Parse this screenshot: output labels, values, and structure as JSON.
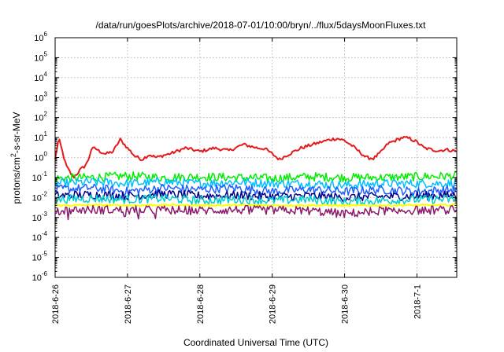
{
  "chart_data": {
    "type": "line",
    "title": "/data/run/goesPlots/archive/2018-07-01/10:00/bryn/../flux/5daysMoonFluxes.txt",
    "xlabel": "Coordinated Universal Time (UTC)",
    "ylabel": "protons/cm2-s-sr-MeV",
    "ylabel_parts": {
      "pre": "protons/cm",
      "sup": "2",
      "post": "-s-sr-MeV"
    },
    "x_unit": "days since 2018-06-26 00:00 UTC",
    "xlim": [
      0,
      5.55
    ],
    "ylim_log10": [
      -6,
      6
    ],
    "y_scale": "log",
    "grid": true,
    "legend": "none",
    "x_ticks": [
      {
        "pos": 0,
        "label": "2018-6-26"
      },
      {
        "pos": 1,
        "label": "2018-6-27"
      },
      {
        "pos": 2,
        "label": "2018-6-28"
      },
      {
        "pos": 3,
        "label": "2018-6-29"
      },
      {
        "pos": 4,
        "label": "2018-6-30"
      },
      {
        "pos": 5,
        "label": "2018-7-1"
      }
    ],
    "y_ticks": [
      {
        "exp": "6",
        "label": "10"
      },
      {
        "exp": "5",
        "label": "10"
      },
      {
        "exp": "4",
        "label": "10"
      },
      {
        "exp": "3",
        "label": "10"
      },
      {
        "exp": "2",
        "label": "10"
      },
      {
        "exp": "1",
        "label": "10"
      },
      {
        "exp": "0",
        "label": "10"
      },
      {
        "exp": "-1",
        "label": "10"
      },
      {
        "exp": "-2",
        "label": "10"
      },
      {
        "exp": "-3",
        "label": "10"
      },
      {
        "exp": "-4",
        "label": "10"
      },
      {
        "exp": "-5",
        "label": "10"
      },
      {
        "exp": "-6",
        "label": "10"
      }
    ],
    "series": [
      {
        "color": "#e41a1c",
        "width": 2,
        "x": [
          0.0,
          0.05,
          0.1,
          0.15,
          0.2,
          0.25,
          0.3,
          0.35,
          0.4,
          0.45,
          0.5,
          0.55,
          0.6,
          0.65,
          0.7,
          0.8,
          0.9,
          1.0,
          1.1,
          1.2,
          1.3,
          1.4,
          1.5,
          1.6,
          1.8,
          2.0,
          2.2,
          2.4,
          2.6,
          2.8,
          2.9,
          3.0,
          3.1,
          3.2,
          3.4,
          3.6,
          3.8,
          3.9,
          4.0,
          4.1,
          4.2,
          4.3,
          4.4,
          4.5,
          4.6,
          4.8,
          4.9,
          5.0,
          5.1,
          5.2,
          5.3,
          5.4,
          5.55
        ],
        "y": [
          0.8,
          9,
          2,
          0.4,
          0.2,
          0.1,
          0.15,
          0.25,
          0.35,
          0.6,
          2.5,
          3,
          2.2,
          1.8,
          1.5,
          2,
          8,
          3,
          1.2,
          0.8,
          1.4,
          1,
          1.3,
          1.6,
          3,
          2,
          3,
          2.2,
          4.5,
          3,
          2.8,
          1.5,
          0.8,
          1.3,
          3,
          5,
          8,
          9,
          7,
          4,
          2,
          1,
          0.9,
          1.8,
          5,
          10,
          9,
          6,
          3,
          2.5,
          2.2,
          2.5,
          2.1
        ]
      },
      {
        "color": "#00ee00",
        "width": 1.5,
        "x": [
          0.0,
          0.5,
          1.0,
          1.5,
          2.0,
          2.5,
          3.0,
          3.5,
          4.0,
          4.5,
          5.0,
          5.55
        ],
        "y": [
          0.09,
          0.1,
          0.12,
          0.1,
          0.11,
          0.1,
          0.09,
          0.11,
          0.1,
          0.1,
          0.11,
          0.12
        ]
      },
      {
        "color": "#00bfff",
        "width": 1.5,
        "x": [
          0.0,
          0.5,
          1.0,
          1.5,
          2.0,
          2.5,
          3.0,
          3.5,
          4.0,
          4.5,
          5.0,
          5.55
        ],
        "y": [
          0.05,
          0.06,
          0.05,
          0.06,
          0.05,
          0.06,
          0.05,
          0.05,
          0.04,
          0.05,
          0.05,
          0.05
        ]
      },
      {
        "color": "#1e5eff",
        "width": 1.5,
        "x": [
          0.0,
          0.5,
          1.0,
          1.5,
          2.0,
          2.5,
          3.0,
          3.5,
          4.0,
          4.5,
          5.0,
          5.55
        ],
        "y": [
          0.025,
          0.03,
          0.02,
          0.03,
          0.025,
          0.03,
          0.02,
          0.025,
          0.02,
          0.025,
          0.02,
          0.025
        ]
      },
      {
        "color": "#00008b",
        "width": 1.5,
        "x": [
          0.0,
          0.5,
          1.0,
          1.5,
          2.0,
          2.5,
          3.0,
          3.5,
          4.0,
          4.5,
          5.0,
          5.55
        ],
        "y": [
          0.012,
          0.014,
          0.012,
          0.015,
          0.012,
          0.013,
          0.011,
          0.012,
          0.01,
          0.011,
          0.012,
          0.013
        ]
      },
      {
        "color": "#00ced1",
        "width": 1.5,
        "x": [
          0.0,
          0.5,
          1.0,
          1.5,
          2.0,
          2.5,
          3.0,
          3.5,
          4.0,
          4.5,
          5.0,
          5.55
        ],
        "y": [
          0.008,
          0.009,
          0.008,
          0.009,
          0.007,
          0.008,
          0.007,
          0.008,
          0.006,
          0.007,
          0.008,
          0.008
        ]
      },
      {
        "color": "#ffff00",
        "width": 2,
        "x": [
          0.0,
          0.5,
          1.0,
          1.5,
          2.0,
          2.5,
          3.0,
          3.5,
          4.0,
          4.5,
          5.0,
          5.55
        ],
        "y": [
          0.004,
          0.0042,
          0.004,
          0.0042,
          0.004,
          0.0041,
          0.004,
          0.0041,
          0.0039,
          0.004,
          0.0041,
          0.0042
        ]
      },
      {
        "color": "#8b1a6b",
        "width": 1.5,
        "x": [
          0.0,
          0.5,
          1.0,
          1.5,
          2.0,
          2.5,
          3.0,
          3.5,
          4.0,
          4.5,
          5.0,
          5.55
        ],
        "y": [
          0.0022,
          0.0025,
          0.0023,
          0.0024,
          0.0022,
          0.0024,
          0.0023,
          0.0022,
          0.0015,
          0.0022,
          0.0023,
          0.0024
        ]
      }
    ]
  }
}
